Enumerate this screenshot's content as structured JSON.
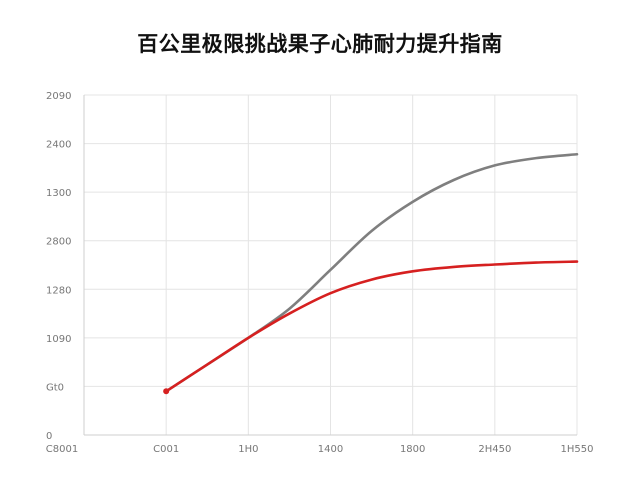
{
  "chart_data": {
    "type": "line",
    "title": "百公里极限挑战果子心肺耐力提升指南",
    "xlabel": "",
    "ylabel": "",
    "x_tick_labels": [
      "C8001",
      "C001",
      "1H0",
      "1400",
      "1800",
      "2H450",
      "1H550"
    ],
    "y_tick_labels": [
      "0",
      "Gt0",
      "1090",
      "1280",
      "2800",
      "1300",
      "2400",
      "2090"
    ],
    "y_tick_values": [
      0,
      1,
      2,
      3,
      4,
      5,
      6,
      7
    ],
    "ylim": [
      0,
      7
    ],
    "xlim": [
      0,
      6
    ],
    "grid": true,
    "legend": "none",
    "series": [
      {
        "color": "#7f7f7f",
        "x": [
          1,
          1.5,
          2,
          2.5,
          3,
          3.5,
          4,
          4.5,
          5,
          5.5,
          6
        ],
        "values": [
          0.9,
          1.45,
          2.0,
          2.6,
          3.4,
          4.2,
          4.8,
          5.25,
          5.55,
          5.7,
          5.78
        ]
      },
      {
        "color": "#d62020",
        "x": [
          1,
          1.5,
          2,
          2.5,
          3,
          3.5,
          4,
          4.5,
          5,
          5.5,
          6
        ],
        "values": [
          0.9,
          1.45,
          2.0,
          2.5,
          2.92,
          3.2,
          3.37,
          3.46,
          3.51,
          3.55,
          3.57
        ]
      }
    ]
  }
}
